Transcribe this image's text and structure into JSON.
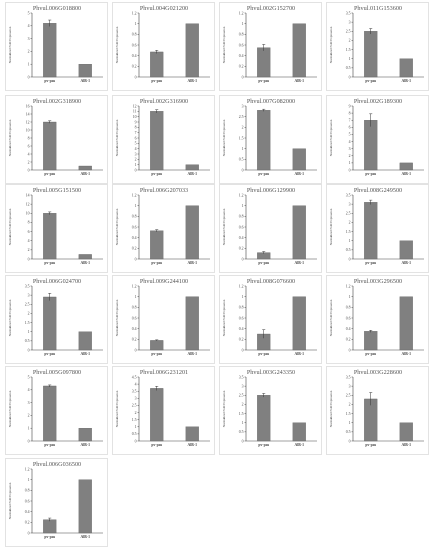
{
  "figure": {
    "bar_color": "#808080",
    "title_color": "#555555",
    "axis_color": "#444444",
    "ylabel": "Normalized Fold Expression",
    "categories": [
      "pv-pas",
      "AlB-1"
    ]
  },
  "chart_data": [
    {
      "type": "bar",
      "title": "Phvul.006G018800",
      "categories": [
        "pv-pas",
        "AlB-1"
      ],
      "values": [
        4.2,
        1.0
      ],
      "errors": [
        0.25,
        0
      ],
      "ylim": [
        0,
        5
      ],
      "yticks": [
        0,
        1,
        2,
        3,
        4,
        5
      ],
      "ylabel": "Normalized Fold Expression"
    },
    {
      "type": "bar",
      "title": "Phvul.004G021200",
      "categories": [
        "pv-pas",
        "AlB-1"
      ],
      "values": [
        0.47,
        1.0
      ],
      "errors": [
        0.03,
        0
      ],
      "ylim": [
        0,
        1.2
      ],
      "yticks": [
        0,
        0.2,
        0.4,
        0.6,
        0.8,
        1,
        1.2
      ],
      "ylabel": "Normalized Fold Expression"
    },
    {
      "type": "bar",
      "title": "Phvul.002G152700",
      "categories": [
        "pv-pas",
        "AlB-1"
      ],
      "values": [
        0.55,
        1.0
      ],
      "errors": [
        0.06,
        0
      ],
      "ylim": [
        0,
        1.2
      ],
      "yticks": [
        0,
        0.2,
        0.4,
        0.6,
        0.8,
        1,
        1.2
      ],
      "ylabel": "Normalized Fold Expression"
    },
    {
      "type": "bar",
      "title": "Phvul.011G153600",
      "categories": [
        "pv-pas",
        "AlB-1"
      ],
      "values": [
        2.5,
        1.0
      ],
      "errors": [
        0.15,
        0
      ],
      "ylim": [
        0,
        3.5
      ],
      "yticks": [
        0,
        0.5,
        1,
        1.5,
        2,
        2.5,
        3,
        3.5
      ],
      "ylabel": "Normalized Fold Expression"
    },
    {
      "type": "bar",
      "title": "Phvul.002G318900",
      "categories": [
        "pv-pas",
        "AlB-1"
      ],
      "values": [
        12,
        1.0
      ],
      "errors": [
        0.3,
        0
      ],
      "ylim": [
        0,
        16
      ],
      "yticks": [
        0,
        2,
        4,
        6,
        8,
        10,
        12,
        14,
        16
      ],
      "ylabel": "Normalized Fold Expression"
    },
    {
      "type": "bar",
      "title": "Phvul.002G316900",
      "categories": [
        "pv-pas",
        "AlB-1"
      ],
      "values": [
        11,
        1.0
      ],
      "errors": [
        0.3,
        0
      ],
      "ylim": [
        0,
        12
      ],
      "yticks": [
        0,
        1,
        2,
        3,
        4,
        5,
        6,
        7,
        8,
        9,
        10,
        11,
        12
      ],
      "ylabel": "Normalized Fold Expression"
    },
    {
      "type": "bar",
      "title": "Phvul.007G082000",
      "categories": [
        "pv-pas",
        "AlB-1"
      ],
      "values": [
        2.8,
        1.0
      ],
      "errors": [
        0.05,
        0
      ],
      "ylim": [
        0,
        3
      ],
      "yticks": [
        0,
        0.5,
        1,
        1.5,
        2,
        2.5,
        3
      ],
      "ylabel": "Normalized Fold Expression"
    },
    {
      "type": "bar",
      "title": "Phvul.002G189300",
      "categories": [
        "pv-pas",
        "AlB-1"
      ],
      "values": [
        7.0,
        1.0
      ],
      "errors": [
        0.9,
        0
      ],
      "ylim": [
        0,
        9
      ],
      "yticks": [
        0,
        1,
        2,
        3,
        4,
        5,
        6,
        7,
        8,
        9
      ],
      "ylabel": "Normalized Fold Expression"
    },
    {
      "type": "bar",
      "title": "Phvul.005G151500",
      "categories": [
        "pv-pas",
        "AlB-1"
      ],
      "values": [
        10,
        1.0
      ],
      "errors": [
        0.3,
        0
      ],
      "ylim": [
        0,
        14
      ],
      "yticks": [
        0,
        2,
        4,
        6,
        8,
        10,
        12,
        14
      ],
      "ylabel": "Normalized Fold Expression"
    },
    {
      "type": "bar",
      "title": "Phvul.006G207033",
      "categories": [
        "pv-pas",
        "AlB-1"
      ],
      "values": [
        0.53,
        1.0
      ],
      "errors": [
        0.02,
        0
      ],
      "ylim": [
        0,
        1.2
      ],
      "yticks": [
        0,
        0.2,
        0.4,
        0.6,
        0.8,
        1,
        1.2
      ],
      "ylabel": "Normalized Fold Expression"
    },
    {
      "type": "bar",
      "title": "Phvul.006G129900",
      "categories": [
        "pv-pas",
        "AlB-1"
      ],
      "values": [
        0.12,
        1.0
      ],
      "errors": [
        0.02,
        0
      ],
      "ylim": [
        0,
        1.2
      ],
      "yticks": [
        0,
        0.2,
        0.4,
        0.6,
        0.8,
        1,
        1.2
      ],
      "ylabel": "Normalized Fold Expression"
    },
    {
      "type": "bar",
      "title": "Phvul.008G249500",
      "categories": [
        "pv-pas",
        "AlB-1"
      ],
      "values": [
        3.1,
        1.0
      ],
      "errors": [
        0.12,
        0
      ],
      "ylim": [
        0,
        3.5
      ],
      "yticks": [
        0,
        0.5,
        1,
        1.5,
        2,
        2.5,
        3,
        3.5
      ],
      "ylabel": "Normalized Fold Expression"
    },
    {
      "type": "bar",
      "title": "Phvul.006G024700",
      "categories": [
        "pv-pas",
        "AlB-1"
      ],
      "values": [
        2.9,
        1.0
      ],
      "errors": [
        0.2,
        0
      ],
      "ylim": [
        0,
        3.5
      ],
      "yticks": [
        0,
        0.5,
        1,
        1.5,
        2,
        2.5,
        3,
        3.5
      ],
      "ylabel": "Normalized Fold Expression"
    },
    {
      "type": "bar",
      "title": "Phvul.009G244100",
      "categories": [
        "pv-pas",
        "AlB-1"
      ],
      "values": [
        0.18,
        1.0
      ],
      "errors": [
        0.01,
        0
      ],
      "ylim": [
        0,
        1.2
      ],
      "yticks": [
        0,
        0.2,
        0.4,
        0.6,
        0.8,
        1,
        1.2
      ],
      "ylabel": "Normalized Fold Expression"
    },
    {
      "type": "bar",
      "title": "Phvul.008G076600",
      "categories": [
        "pv-pas",
        "AlB-1"
      ],
      "values": [
        0.3,
        1.0
      ],
      "errors": [
        0.08,
        0
      ],
      "ylim": [
        0,
        1.2
      ],
      "yticks": [
        0,
        0.2,
        0.4,
        0.6,
        0.8,
        1,
        1.2
      ],
      "ylabel": "Normalized Fold Expression"
    },
    {
      "type": "bar",
      "title": "Phvul.003G296500",
      "categories": [
        "pv-pas",
        "AlB-1"
      ],
      "values": [
        0.35,
        1.0
      ],
      "errors": [
        0.02,
        0
      ],
      "ylim": [
        0,
        1.2
      ],
      "yticks": [
        0,
        0.2,
        0.4,
        0.6,
        0.8,
        1,
        1.2
      ],
      "ylabel": "Normalized Fold Expression"
    },
    {
      "type": "bar",
      "title": "Phvul.005G097800",
      "categories": [
        "pv-pas",
        "AlB-1"
      ],
      "values": [
        4.3,
        1.0
      ],
      "errors": [
        0.08,
        0
      ],
      "ylim": [
        0,
        5
      ],
      "yticks": [
        0,
        1,
        2,
        3,
        4,
        5
      ],
      "ylabel": "Normalized Fold Expression"
    },
    {
      "type": "bar",
      "title": "Phvul.006G231201",
      "categories": [
        "pv-pas",
        "AlB-1"
      ],
      "values": [
        3.7,
        1.0
      ],
      "errors": [
        0.15,
        0
      ],
      "ylim": [
        0,
        4.5
      ],
      "yticks": [
        0,
        0.5,
        1,
        1.5,
        2,
        2.5,
        3,
        3.5,
        4,
        4.5
      ],
      "ylabel": "Normalized Fold Expression"
    },
    {
      "type": "bar",
      "title": "Phvul.003G243350",
      "categories": [
        "pv-pas",
        "AlB-1"
      ],
      "values": [
        2.5,
        1.0
      ],
      "errors": [
        0.1,
        0
      ],
      "ylim": [
        0,
        3.5
      ],
      "yticks": [
        0,
        0.5,
        1,
        1.5,
        2,
        2.5,
        3,
        3.5
      ],
      "ylabel": "Normalized Fold Expression"
    },
    {
      "type": "bar",
      "title": "Phvul.003G228600",
      "categories": [
        "pv-pas",
        "AlB-1"
      ],
      "values": [
        2.3,
        1.0
      ],
      "errors": [
        0.35,
        0
      ],
      "ylim": [
        0,
        3.5
      ],
      "yticks": [
        0,
        0.5,
        1,
        1.5,
        2,
        2.5,
        3,
        3.5
      ],
      "ylabel": "Normalized Fold Expression"
    },
    {
      "type": "bar",
      "title": "Phvul.006G036500",
      "categories": [
        "pv-pas",
        "AlB-1"
      ],
      "values": [
        0.25,
        1.0
      ],
      "errors": [
        0.03,
        0
      ],
      "ylim": [
        0,
        1.2
      ],
      "yticks": [
        0,
        0.2,
        0.4,
        0.6,
        0.8,
        1,
        1.2
      ],
      "ylabel": "Normalized Fold Expression"
    }
  ]
}
